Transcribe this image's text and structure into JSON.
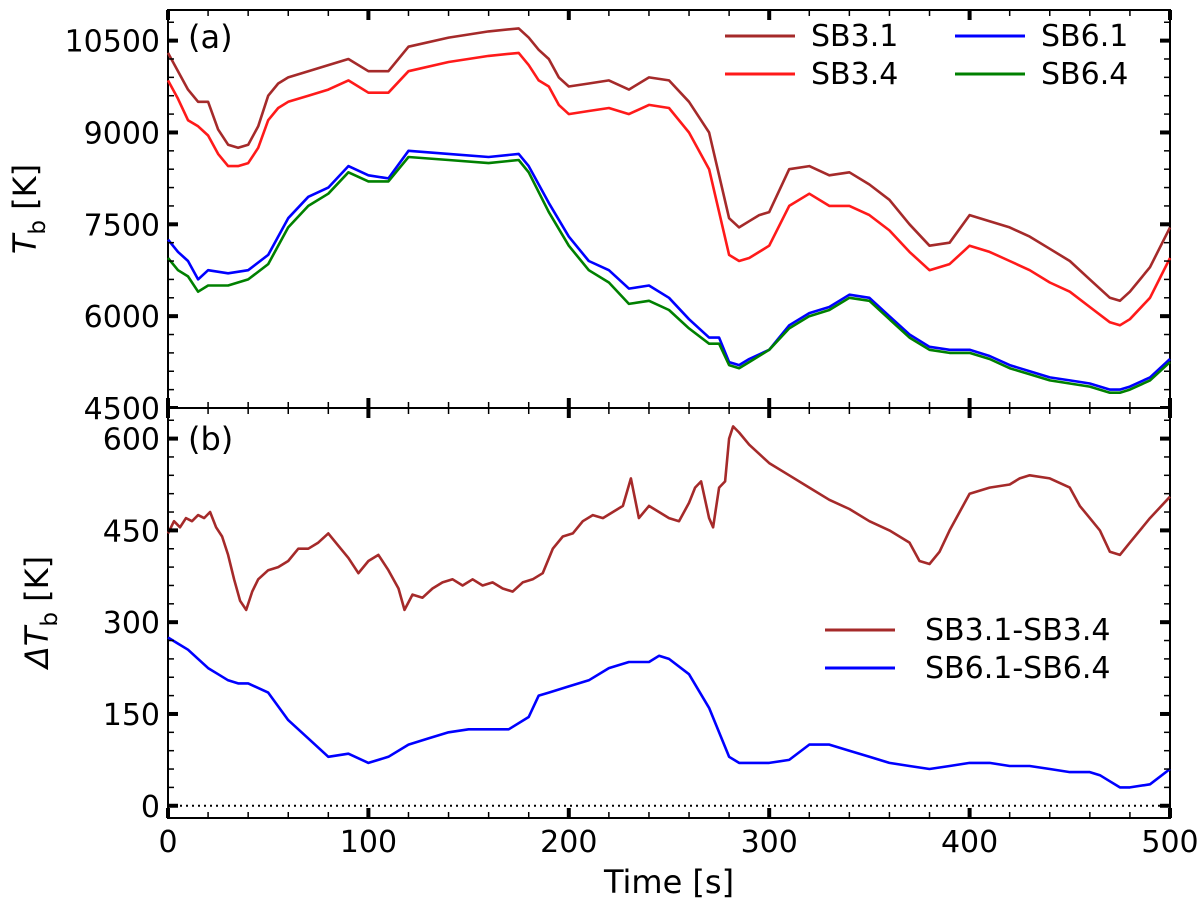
{
  "chart_data": [
    {
      "type": "line",
      "panel_label": "(a)",
      "xlabel": "Time [s]",
      "ylabel_main": "T",
      "ylabel_sub": "b",
      "ylabel_unit": " [K]",
      "xlim": [
        0,
        500
      ],
      "ylim": [
        4500,
        11000
      ],
      "xticks": [
        0,
        100,
        200,
        300,
        400,
        500
      ],
      "yticks": [
        4500,
        6000,
        7500,
        9000,
        10500
      ],
      "legend_position": "top-right",
      "series": [
        {
          "name": "SB3.1",
          "color": "#a52a2a",
          "x": [
            0,
            5,
            10,
            15,
            20,
            25,
            30,
            35,
            40,
            45,
            50,
            55,
            60,
            70,
            80,
            90,
            100,
            110,
            120,
            140,
            160,
            175,
            180,
            185,
            190,
            195,
            200,
            210,
            220,
            230,
            240,
            250,
            260,
            270,
            275,
            280,
            285,
            290,
            295,
            300,
            310,
            320,
            330,
            340,
            350,
            360,
            370,
            380,
            390,
            400,
            410,
            420,
            430,
            440,
            450,
            460,
            470,
            475,
            480,
            490,
            500
          ],
          "values": [
            10300,
            10000,
            9700,
            9500,
            9500,
            9050,
            8800,
            8750,
            8800,
            9100,
            9600,
            9800,
            9900,
            10000,
            10100,
            10200,
            10000,
            10000,
            10400,
            10550,
            10650,
            10700,
            10550,
            10350,
            10200,
            9900,
            9750,
            9800,
            9850,
            9700,
            9900,
            9850,
            9500,
            9000,
            8300,
            7600,
            7450,
            7550,
            7650,
            7700,
            8400,
            8450,
            8300,
            8350,
            8150,
            7900,
            7500,
            7150,
            7200,
            7650,
            7550,
            7450,
            7300,
            7100,
            6900,
            6600,
            6300,
            6250,
            6400,
            6800,
            7450
          ]
        },
        {
          "name": "SB3.4",
          "color": "#ff1a1a",
          "x": [
            0,
            5,
            10,
            15,
            20,
            25,
            30,
            35,
            40,
            45,
            50,
            55,
            60,
            70,
            80,
            90,
            100,
            110,
            120,
            140,
            160,
            175,
            180,
            185,
            190,
            195,
            200,
            210,
            220,
            230,
            240,
            250,
            260,
            270,
            275,
            280,
            285,
            290,
            295,
            300,
            310,
            320,
            330,
            340,
            350,
            360,
            370,
            380,
            390,
            400,
            410,
            420,
            430,
            440,
            450,
            460,
            470,
            475,
            480,
            490,
            500
          ],
          "values": [
            9850,
            9550,
            9200,
            9100,
            8950,
            8650,
            8450,
            8450,
            8500,
            8750,
            9200,
            9400,
            9500,
            9600,
            9700,
            9850,
            9650,
            9650,
            10000,
            10150,
            10250,
            10300,
            10100,
            9850,
            9750,
            9450,
            9300,
            9350,
            9400,
            9300,
            9450,
            9400,
            9000,
            8400,
            7700,
            7000,
            6900,
            6950,
            7050,
            7150,
            7800,
            8000,
            7800,
            7800,
            7650,
            7400,
            7050,
            6750,
            6850,
            7150,
            7050,
            6900,
            6750,
            6550,
            6400,
            6150,
            5900,
            5850,
            5950,
            6300,
            6950
          ]
        },
        {
          "name": "SB6.1",
          "color": "#0000ff",
          "x": [
            0,
            5,
            10,
            15,
            20,
            30,
            40,
            50,
            60,
            70,
            80,
            90,
            100,
            110,
            120,
            140,
            160,
            175,
            180,
            190,
            200,
            210,
            220,
            230,
            240,
            250,
            260,
            270,
            275,
            280,
            285,
            290,
            300,
            310,
            320,
            330,
            340,
            350,
            360,
            370,
            380,
            390,
            400,
            410,
            420,
            430,
            440,
            450,
            460,
            470,
            475,
            480,
            490,
            500
          ],
          "values": [
            7250,
            7050,
            6900,
            6600,
            6750,
            6700,
            6750,
            7000,
            7600,
            7950,
            8100,
            8450,
            8300,
            8250,
            8700,
            8650,
            8600,
            8650,
            8450,
            7850,
            7300,
            6900,
            6750,
            6450,
            6500,
            6300,
            5950,
            5650,
            5650,
            5250,
            5200,
            5300,
            5450,
            5850,
            6050,
            6150,
            6350,
            6300,
            6000,
            5700,
            5500,
            5450,
            5450,
            5350,
            5200,
            5100,
            5000,
            4950,
            4900,
            4800,
            4800,
            4850,
            5000,
            5300
          ]
        },
        {
          "name": "SB6.4",
          "color": "#008000",
          "x": [
            0,
            5,
            10,
            15,
            20,
            30,
            40,
            50,
            60,
            70,
            80,
            90,
            100,
            110,
            120,
            140,
            160,
            175,
            180,
            190,
            200,
            210,
            220,
            230,
            240,
            250,
            260,
            270,
            275,
            280,
            285,
            290,
            300,
            310,
            320,
            330,
            340,
            350,
            360,
            370,
            380,
            390,
            400,
            410,
            420,
            430,
            440,
            450,
            460,
            470,
            475,
            480,
            490,
            500
          ],
          "values": [
            6950,
            6750,
            6650,
            6400,
            6500,
            6500,
            6600,
            6850,
            7450,
            7800,
            8000,
            8350,
            8200,
            8200,
            8600,
            8550,
            8500,
            8550,
            8350,
            7700,
            7150,
            6750,
            6550,
            6200,
            6250,
            6100,
            5800,
            5550,
            5550,
            5200,
            5150,
            5250,
            5450,
            5800,
            6000,
            6100,
            6300,
            6250,
            5950,
            5650,
            5450,
            5400,
            5400,
            5300,
            5150,
            5050,
            4950,
            4900,
            4850,
            4750,
            4750,
            4800,
            4950,
            5250
          ]
        }
      ]
    },
    {
      "type": "line",
      "panel_label": "(b)",
      "xlabel": "Time [s]",
      "ylabel_main": "ΔT",
      "ylabel_sub": "b",
      "ylabel_unit": " [K]",
      "xlim": [
        0,
        500
      ],
      "ylim": [
        -20,
        650
      ],
      "xticks": [
        0,
        100,
        200,
        300,
        400,
        500
      ],
      "yticks": [
        0,
        150,
        300,
        450,
        600
      ],
      "reference_line": {
        "y": 0,
        "style": "dotted"
      },
      "legend_position": "center-right",
      "series": [
        {
          "name": "SB3.1-SB3.4",
          "color": "#a52a2a",
          "x": [
            0,
            3,
            6,
            9,
            12,
            15,
            18,
            21,
            24,
            27,
            30,
            33,
            36,
            39,
            42,
            45,
            50,
            55,
            60,
            65,
            70,
            75,
            80,
            85,
            90,
            95,
            100,
            105,
            110,
            115,
            118,
            122,
            127,
            132,
            137,
            142,
            147,
            152,
            157,
            162,
            167,
            172,
            177,
            182,
            187,
            192,
            197,
            202,
            207,
            212,
            217,
            222,
            227,
            231,
            235,
            240,
            245,
            250,
            255,
            260,
            263,
            266,
            270,
            272,
            275,
            278,
            280,
            282,
            285,
            290,
            300,
            310,
            320,
            330,
            340,
            350,
            360,
            370,
            375,
            380,
            385,
            390,
            400,
            410,
            420,
            425,
            430,
            440,
            450,
            455,
            460,
            465,
            470,
            475,
            480,
            490,
            500
          ],
          "values": [
            445,
            465,
            455,
            470,
            465,
            475,
            470,
            480,
            455,
            440,
            410,
            370,
            335,
            320,
            350,
            370,
            385,
            390,
            400,
            420,
            420,
            430,
            445,
            425,
            405,
            380,
            400,
            410,
            385,
            355,
            320,
            345,
            340,
            355,
            365,
            370,
            360,
            370,
            360,
            365,
            355,
            350,
            365,
            370,
            380,
            420,
            440,
            445,
            465,
            475,
            470,
            480,
            490,
            535,
            470,
            490,
            480,
            470,
            465,
            495,
            520,
            530,
            470,
            455,
            520,
            530,
            600,
            620,
            610,
            590,
            560,
            540,
            520,
            500,
            485,
            465,
            450,
            430,
            400,
            395,
            415,
            450,
            510,
            520,
            525,
            535,
            540,
            535,
            520,
            490,
            470,
            450,
            415,
            410,
            430,
            470,
            505
          ]
        },
        {
          "name": "SB6.1-SB6.4",
          "color": "#0000ff",
          "x": [
            0,
            5,
            10,
            15,
            20,
            25,
            30,
            35,
            40,
            50,
            60,
            70,
            80,
            90,
            100,
            110,
            120,
            130,
            140,
            150,
            160,
            170,
            180,
            185,
            190,
            200,
            210,
            220,
            230,
            240,
            245,
            250,
            260,
            270,
            280,
            285,
            290,
            300,
            310,
            320,
            330,
            340,
            350,
            360,
            370,
            380,
            390,
            400,
            410,
            420,
            430,
            440,
            450,
            460,
            465,
            470,
            475,
            480,
            490,
            500
          ],
          "values": [
            275,
            265,
            255,
            240,
            225,
            215,
            205,
            200,
            200,
            185,
            140,
            110,
            80,
            85,
            70,
            80,
            100,
            110,
            120,
            125,
            125,
            125,
            145,
            180,
            185,
            195,
            205,
            225,
            235,
            235,
            245,
            240,
            215,
            160,
            80,
            70,
            70,
            70,
            75,
            100,
            100,
            90,
            80,
            70,
            65,
            60,
            65,
            70,
            70,
            65,
            65,
            60,
            55,
            55,
            50,
            40,
            30,
            30,
            35,
            60
          ]
        }
      ]
    }
  ]
}
